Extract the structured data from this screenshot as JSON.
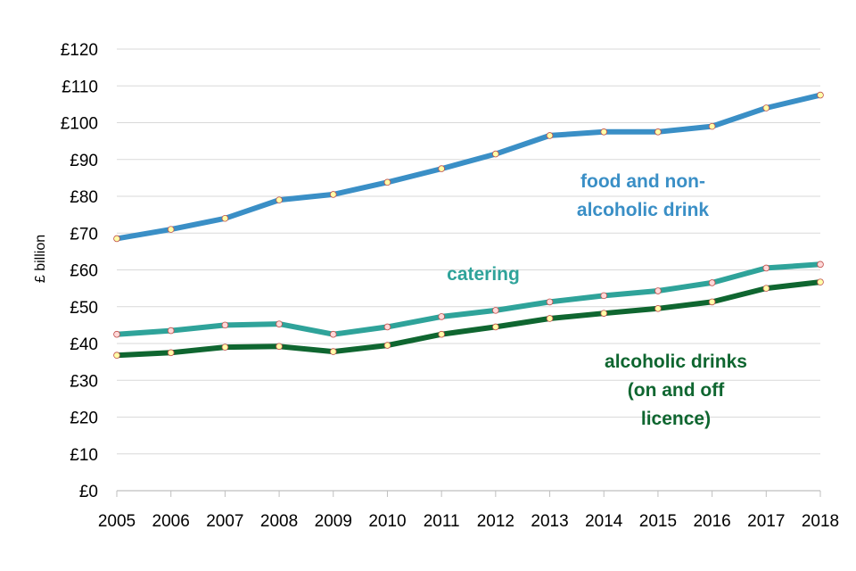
{
  "chart_data": {
    "type": "line",
    "x": [
      "2005",
      "2006",
      "2007",
      "2008",
      "2009",
      "2010",
      "2011",
      "2012",
      "2013",
      "2014",
      "2015",
      "2016",
      "2017",
      "2018"
    ],
    "ylabel": "£ billion",
    "xlabel": "",
    "ylim": [
      0,
      120
    ],
    "yticks": [
      "£0",
      "£10",
      "£20",
      "£30",
      "£40",
      "£50",
      "£60",
      "£70",
      "£80",
      "£90",
      "£100",
      "£110",
      "£120"
    ],
    "grid": true,
    "series": [
      {
        "name": "food and non-alcoholic drink",
        "label_lines": [
          "food and non-",
          "alcoholic drink"
        ],
        "color": "#3a8fc6",
        "marker_color": "#ffffa8",
        "values": [
          68.5,
          71.0,
          74.0,
          79.0,
          80.5,
          83.8,
          87.5,
          91.5,
          96.5,
          97.5,
          97.5,
          99.0,
          104.0,
          107.5
        ]
      },
      {
        "name": "catering",
        "label_lines": [
          "catering"
        ],
        "color": "#2fa39a",
        "marker_color": "#ffd9d9",
        "values": [
          42.5,
          43.5,
          45.0,
          45.3,
          42.5,
          44.5,
          47.3,
          49.0,
          51.3,
          53.0,
          54.3,
          56.5,
          60.5,
          61.5
        ]
      },
      {
        "name": "alcoholic drinks (on and off licence)",
        "label_lines": [
          "alcoholic drinks",
          "(on and off",
          "licence)"
        ],
        "color": "#0f6630",
        "marker_color": "#ffffa8",
        "values": [
          36.8,
          37.5,
          39.0,
          39.2,
          37.8,
          39.5,
          42.5,
          44.5,
          46.8,
          48.2,
          49.5,
          51.3,
          55.0,
          56.7
        ]
      }
    ]
  }
}
